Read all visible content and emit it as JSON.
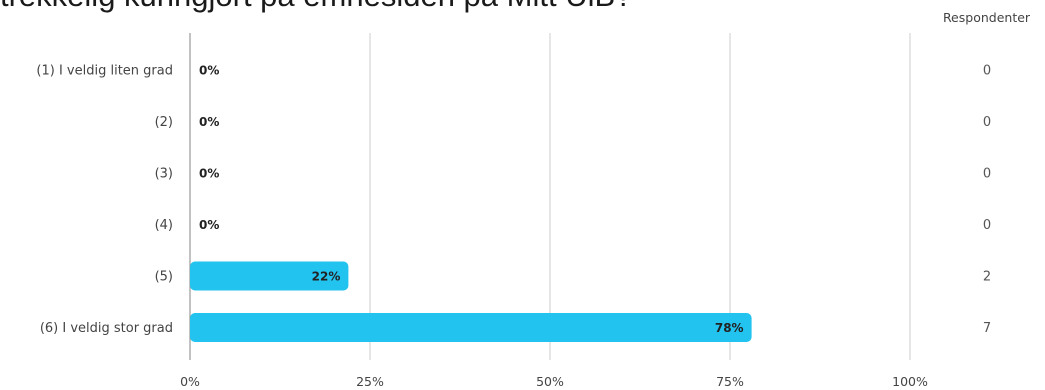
{
  "title": "trekkelig kunngjort på emnesiden på Mitt UiB?",
  "column_header": "Respondenter",
  "colors": {
    "bar": "#23c3f0",
    "grid": "#d6d6d6",
    "axis": "#9a9a9a"
  },
  "chart_data": {
    "type": "bar",
    "orientation": "horizontal",
    "title": "trekkelig kunngjort på emnesiden på Mitt UiB?",
    "categories": [
      "(1) I veldig liten grad",
      "(2)",
      "(3)",
      "(4)",
      "(5)",
      "(6) I veldig stor grad"
    ],
    "values": [
      0,
      0,
      0,
      0,
      22,
      78
    ],
    "value_labels": [
      "0%",
      "0%",
      "0%",
      "0%",
      "22%",
      "78%"
    ],
    "respondents": [
      0,
      0,
      0,
      0,
      2,
      7
    ],
    "respondents_labels": [
      "0",
      "0",
      "0",
      "0",
      "2",
      "7"
    ],
    "xlim": [
      0,
      100
    ],
    "xticks": [
      0,
      25,
      50,
      75,
      100
    ],
    "xtick_labels": [
      "0%",
      "25%",
      "50%",
      "75%",
      "100%"
    ],
    "grid": true
  }
}
